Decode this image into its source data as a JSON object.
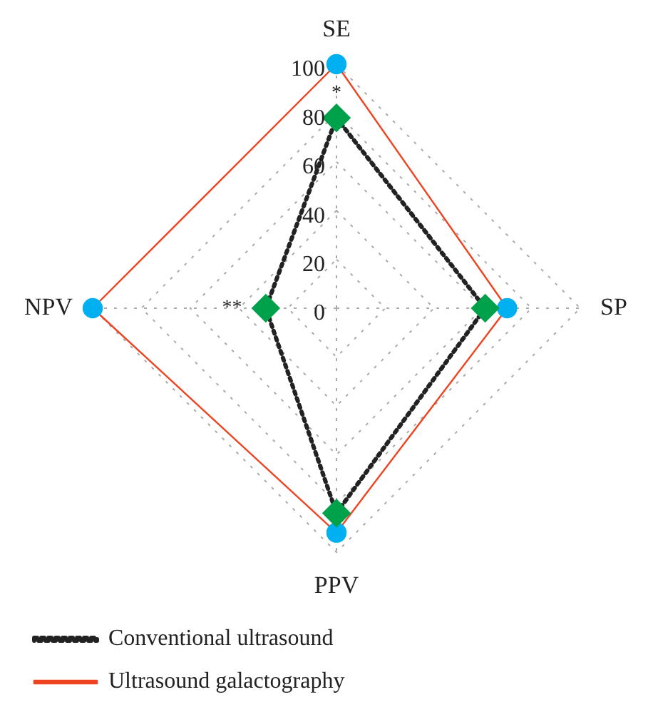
{
  "chart_data": {
    "type": "radar",
    "categories": [
      "SE",
      "SP",
      "PPV",
      "NPV"
    ],
    "series": [
      {
        "name": "Conventional ultrasound",
        "color": "#222222",
        "colors": [
          "#00a14b",
          "#00a14b",
          "#00a14b",
          "#00a14b"
        ],
        "values": [
          78,
          61,
          84,
          29
        ],
        "marker": "diamond",
        "line_style": "dotted"
      },
      {
        "name": "Ultrasound galactography",
        "color": "#ee4422",
        "colors": [
          "#00b0f0",
          "#00b0f0",
          "#00b0f0",
          "#00b0f0"
        ],
        "values": [
          100,
          70,
          92,
          100
        ],
        "marker": "circle",
        "line_style": "solid"
      }
    ],
    "ylim": [
      0,
      100
    ],
    "yticks": [
      0,
      20,
      40,
      60,
      80,
      100
    ],
    "grid": true,
    "legend": "bottom",
    "annotations": [
      "*",
      "**"
    ]
  }
}
